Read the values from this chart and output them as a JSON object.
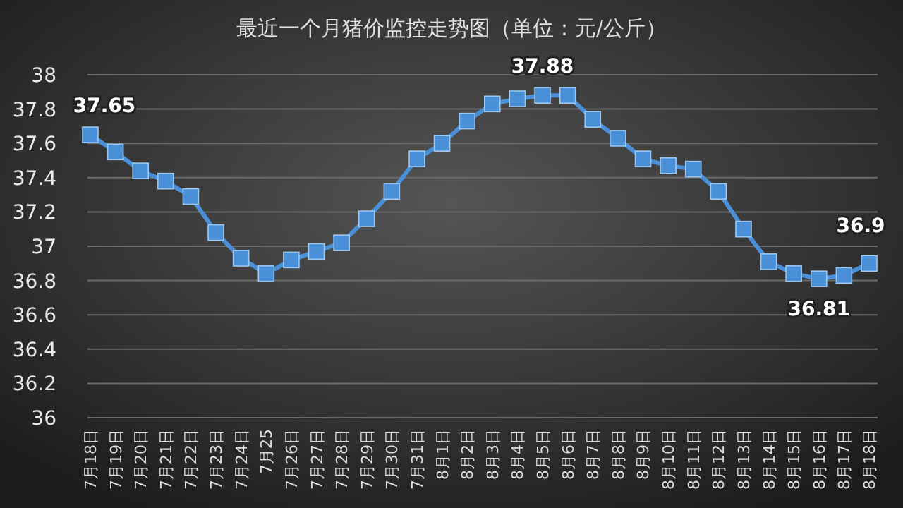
{
  "chart_data": {
    "type": "line",
    "title": "最近一个月猪价监控走势图（单位：元/公斤）",
    "categories": [
      "7月18日",
      "7月19日",
      "7月20日",
      "7月21日",
      "7月22日",
      "7月23日",
      "7月24日",
      "7月25",
      "7月26日",
      "7月27日",
      "7月28日",
      "7月29日",
      "7月30日",
      "7月31日",
      "8月1日",
      "8月2日",
      "8月3日",
      "8月4日",
      "8月5日",
      "8月6日",
      "8月7日",
      "8月8日",
      "8月9日",
      "8月10日",
      "8月11日",
      "8月12日",
      "8月13日",
      "8月14日",
      "8月15日",
      "8月16日",
      "8月17日",
      "8月18日"
    ],
    "series": [
      {
        "color": "#4a90d9",
        "values": [
          37.65,
          37.55,
          37.44,
          37.38,
          37.29,
          37.08,
          36.93,
          36.84,
          36.92,
          36.97,
          37.02,
          37.16,
          37.32,
          37.51,
          37.6,
          37.73,
          37.83,
          37.86,
          37.88,
          37.88,
          37.74,
          37.63,
          37.51,
          37.47,
          37.45,
          37.32,
          37.1,
          36.91,
          36.84,
          36.81,
          36.83,
          36.9
        ],
        "value_labels": [
          "37.65",
          null,
          null,
          null,
          null,
          null,
          null,
          null,
          null,
          null,
          null,
          null,
          null,
          null,
          null,
          null,
          null,
          null,
          "37.88",
          null,
          null,
          null,
          null,
          null,
          null,
          null,
          null,
          null,
          null,
          "36.81",
          null,
          "36.9"
        ]
      }
    ],
    "ylim": [
      36,
      38
    ],
    "yticks": [
      36,
      36.2,
      36.4,
      36.6,
      36.8,
      37,
      37.2,
      37.4,
      37.6,
      37.8,
      38
    ],
    "grid": "y",
    "marker": "square",
    "line_style": "solid"
  }
}
